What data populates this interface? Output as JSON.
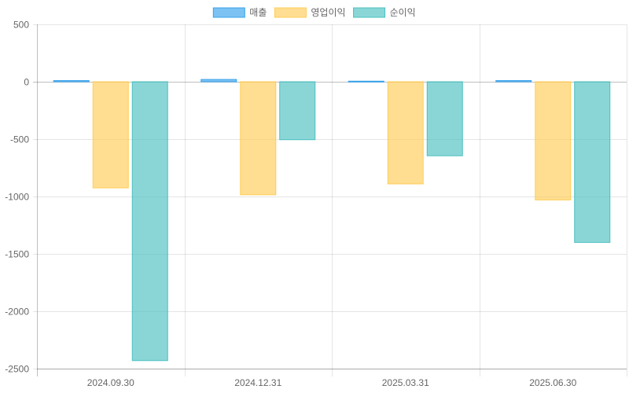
{
  "chart_data": {
    "type": "bar",
    "categories": [
      "2024.09.30",
      "2024.12.31",
      "2025.03.31",
      "2025.06.30"
    ],
    "series": [
      {
        "name": "매출",
        "values": [
          10,
          20,
          5,
          10
        ],
        "fill": "#36A2EB",
        "stroke": "#36A2EB"
      },
      {
        "name": "영업이익",
        "values": [
          -925,
          -985,
          -890,
          -1030
        ],
        "fill": "#FFCD56",
        "stroke": "#FFCD56"
      },
      {
        "name": "순이익",
        "values": [
          -2430,
          -505,
          -645,
          -1400
        ],
        "fill": "#4BC0C0",
        "stroke": "#4BC0C0"
      }
    ],
    "ylim": [
      -2500,
      500
    ],
    "yticks": [
      500,
      0,
      -500,
      -1000,
      -1500,
      -2000,
      -2500
    ],
    "grid": true,
    "legend_position": "top"
  }
}
